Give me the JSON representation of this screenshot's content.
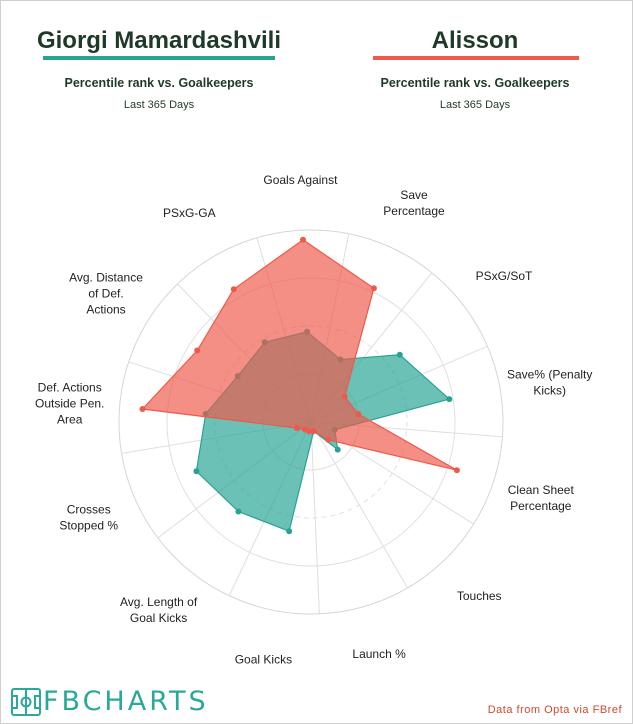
{
  "players": [
    {
      "name": "Giorgi Mamardashvili",
      "subtitle": "Percentile rank vs. Goalkeepers",
      "period": "Last 365 Days",
      "color": "#27a394"
    },
    {
      "name": "Alisson",
      "subtitle": "Percentile rank vs. Goalkeepers",
      "period": "Last 365 Days",
      "color": "#ee5a4a"
    }
  ],
  "chart_data": {
    "type": "radar",
    "title": "Percentile rank vs. Goalkeepers",
    "subtitle": "Last 365 Days",
    "rmax": 100,
    "gridlines": [
      25,
      50,
      75,
      100
    ],
    "categories": [
      "Goals Against",
      "Save Percentage",
      "PSxG/SoT",
      "Save% (Penalty Kicks)",
      "Clean Sheet Percentage",
      "Touches",
      "Launch %",
      "Goal Kicks",
      "Avg. Length of Goal Kicks",
      "Crosses Stopped %",
      "Def. Actions Outside Pen. Area",
      "Avg. Distance of Def. Actions",
      "PSxG-GA"
    ],
    "series": [
      {
        "name": "Giorgi Mamardashvili",
        "values": [
          47,
          36,
          58,
          73,
          13,
          20,
          5,
          58,
          60,
          65,
          55,
          45,
          48
        ]
      },
      {
        "name": "Alisson",
        "values": [
          95,
          77,
          22,
          25,
          80,
          13,
          5,
          5,
          5,
          8,
          88,
          70,
          80
        ]
      }
    ]
  },
  "footer": {
    "brand": "FBCHARTS",
    "source": "Data from Opta via FBref"
  }
}
